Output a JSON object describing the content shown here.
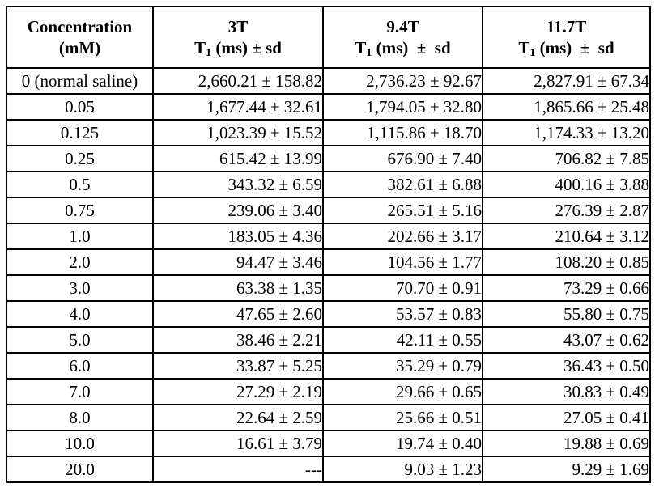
{
  "page": {
    "background_color": "#ffffff",
    "text_color": "#000000",
    "border_color": "#000000"
  },
  "table": {
    "header": {
      "col1": {
        "line1": "Concentration",
        "line2": "(mM)"
      },
      "col2": {
        "field": "3T",
        "t": "T",
        "sub": "1",
        "rest": " (ms) ± sd"
      },
      "col3": {
        "field": "9.4T",
        "t": "T",
        "sub": "1",
        "rest": " (ms)  ±  sd"
      },
      "col4": {
        "field": "11.7T",
        "t": "T",
        "sub": "1",
        "rest": " (ms)  ±  sd"
      }
    },
    "rows": [
      {
        "concentration": "0 (normal saline)",
        "t3": "2,660.21 ± 158.82",
        "t94": "2,736.23 ± 92.67",
        "t117": "2,827.91 ± 67.34"
      },
      {
        "concentration": "0.05",
        "t3": "1,677.44 ± 32.61",
        "t94": "1,794.05 ± 32.80",
        "t117": "1,865.66 ± 25.48"
      },
      {
        "concentration": "0.125",
        "t3": "1,023.39 ± 15.52",
        "t94": "1,115.86 ± 18.70",
        "t117": "1,174.33 ± 13.20"
      },
      {
        "concentration": "0.25",
        "t3": "615.42 ± 13.99",
        "t94": "676.90 ± 7.40",
        "t117": "706.82 ± 7.85"
      },
      {
        "concentration": "0.5",
        "t3": "343.32 ± 6.59",
        "t94": "382.61 ± 6.88",
        "t117": "400.16 ± 3.88"
      },
      {
        "concentration": "0.75",
        "t3": "239.06 ± 3.40",
        "t94": "265.51 ± 5.16",
        "t117": "276.39 ± 2.87"
      },
      {
        "concentration": "1.0",
        "t3": "183.05 ± 4.36",
        "t94": "202.66 ± 3.17",
        "t117": "210.64 ± 3.12"
      },
      {
        "concentration": "2.0",
        "t3": "94.47 ± 3.46",
        "t94": "104.56 ± 1.77",
        "t117": "108.20 ± 0.85"
      },
      {
        "concentration": "3.0",
        "t3": "63.38 ± 1.35",
        "t94": "70.70 ± 0.91",
        "t117": "73.29 ± 0.66"
      },
      {
        "concentration": "4.0",
        "t3": "47.65 ± 2.60",
        "t94": "53.57 ± 0.83",
        "t117": "55.80 ± 0.75"
      },
      {
        "concentration": "5.0",
        "t3": "38.46 ± 2.21",
        "t94": "42.11 ± 0.55",
        "t117": "43.07 ± 0.62"
      },
      {
        "concentration": "6.0",
        "t3": "33.87 ± 5.25",
        "t94": "35.29 ± 0.79",
        "t117": "36.43 ± 0.50"
      },
      {
        "concentration": "7.0",
        "t3": "27.29 ± 2.19",
        "t94": "29.66 ± 0.65",
        "t117": "30.83 ± 0.49"
      },
      {
        "concentration": "8.0",
        "t3": "22.64 ± 2.59",
        "t94": "25.66 ± 0.51",
        "t117": "27.05 ± 0.41"
      },
      {
        "concentration": "10.0",
        "t3": "16.61 ± 3.79",
        "t94": "19.74 ± 0.40",
        "t117": "19.88 ± 0.69"
      },
      {
        "concentration": "20.0",
        "t3": "---",
        "t94": "9.03 ± 1.23",
        "t117": "9.29 ± 1.69"
      }
    ]
  }
}
